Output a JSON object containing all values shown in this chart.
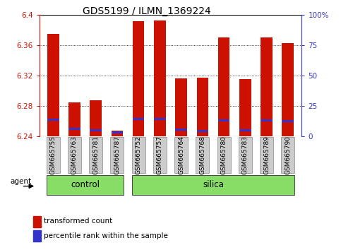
{
  "title": "GDS5199 / ILMN_1369224",
  "samples": [
    "GSM665755",
    "GSM665763",
    "GSM665781",
    "GSM665787",
    "GSM665752",
    "GSM665757",
    "GSM665764",
    "GSM665768",
    "GSM665780",
    "GSM665783",
    "GSM665789",
    "GSM665790"
  ],
  "groups": [
    "control",
    "control",
    "control",
    "control",
    "silica",
    "silica",
    "silica",
    "silica",
    "silica",
    "silica",
    "silica",
    "silica"
  ],
  "red_values": [
    6.375,
    6.285,
    6.287,
    6.247,
    6.392,
    6.393,
    6.316,
    6.317,
    6.37,
    6.315,
    6.37,
    6.363
  ],
  "blue_values": [
    6.262,
    6.25,
    6.248,
    6.245,
    6.263,
    6.263,
    6.249,
    6.247,
    6.261,
    6.248,
    6.261,
    6.26
  ],
  "ymin": 6.24,
  "ymax": 6.4,
  "yticks": [
    6.24,
    6.28,
    6.32,
    6.36,
    6.4
  ],
  "right_yticks": [
    0,
    25,
    50,
    75,
    100
  ],
  "right_ytick_labels": [
    "0",
    "25",
    "50",
    "75",
    "100%"
  ],
  "bar_width": 0.55,
  "bar_color": "#cc1100",
  "blue_color": "#3333cc",
  "group_fill": "#88dd66",
  "group_edge": "#444444",
  "tick_bg": "#cccccc",
  "tick_edge": "#888888",
  "legend_red_label": "transformed count",
  "legend_blue_label": "percentile rank within the sample",
  "agent_label": "agent",
  "control_label": "control",
  "silica_label": "silica"
}
